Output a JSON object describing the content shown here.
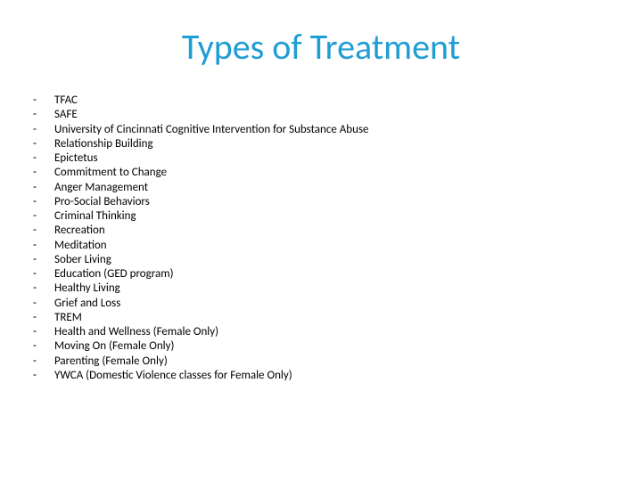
{
  "title": {
    "text": "Types of Treatment",
    "color": "#1f9dd4",
    "fontsize": 40
  },
  "list": {
    "bullet_char": "-",
    "item_fontsize": 13,
    "item_color": "#000000",
    "items": [
      "TFAC",
      "SAFE",
      "University of Cincinnati Cognitive Intervention for Substance Abuse",
      "Relationship Building",
      "Epictetus",
      "Commitment to Change",
      "Anger Management",
      "Pro-Social Behaviors",
      "Criminal Thinking",
      "Recreation",
      "Meditation",
      "Sober Living",
      "Education (GED program)",
      "Healthy Living",
      "Grief and Loss",
      "TREM",
      "Health and Wellness (Female Only)",
      "Moving On (Female Only)",
      "Parenting (Female Only)",
      "YWCA (Domestic Violence classes for Female Only)"
    ]
  },
  "background_color": "#ffffff"
}
